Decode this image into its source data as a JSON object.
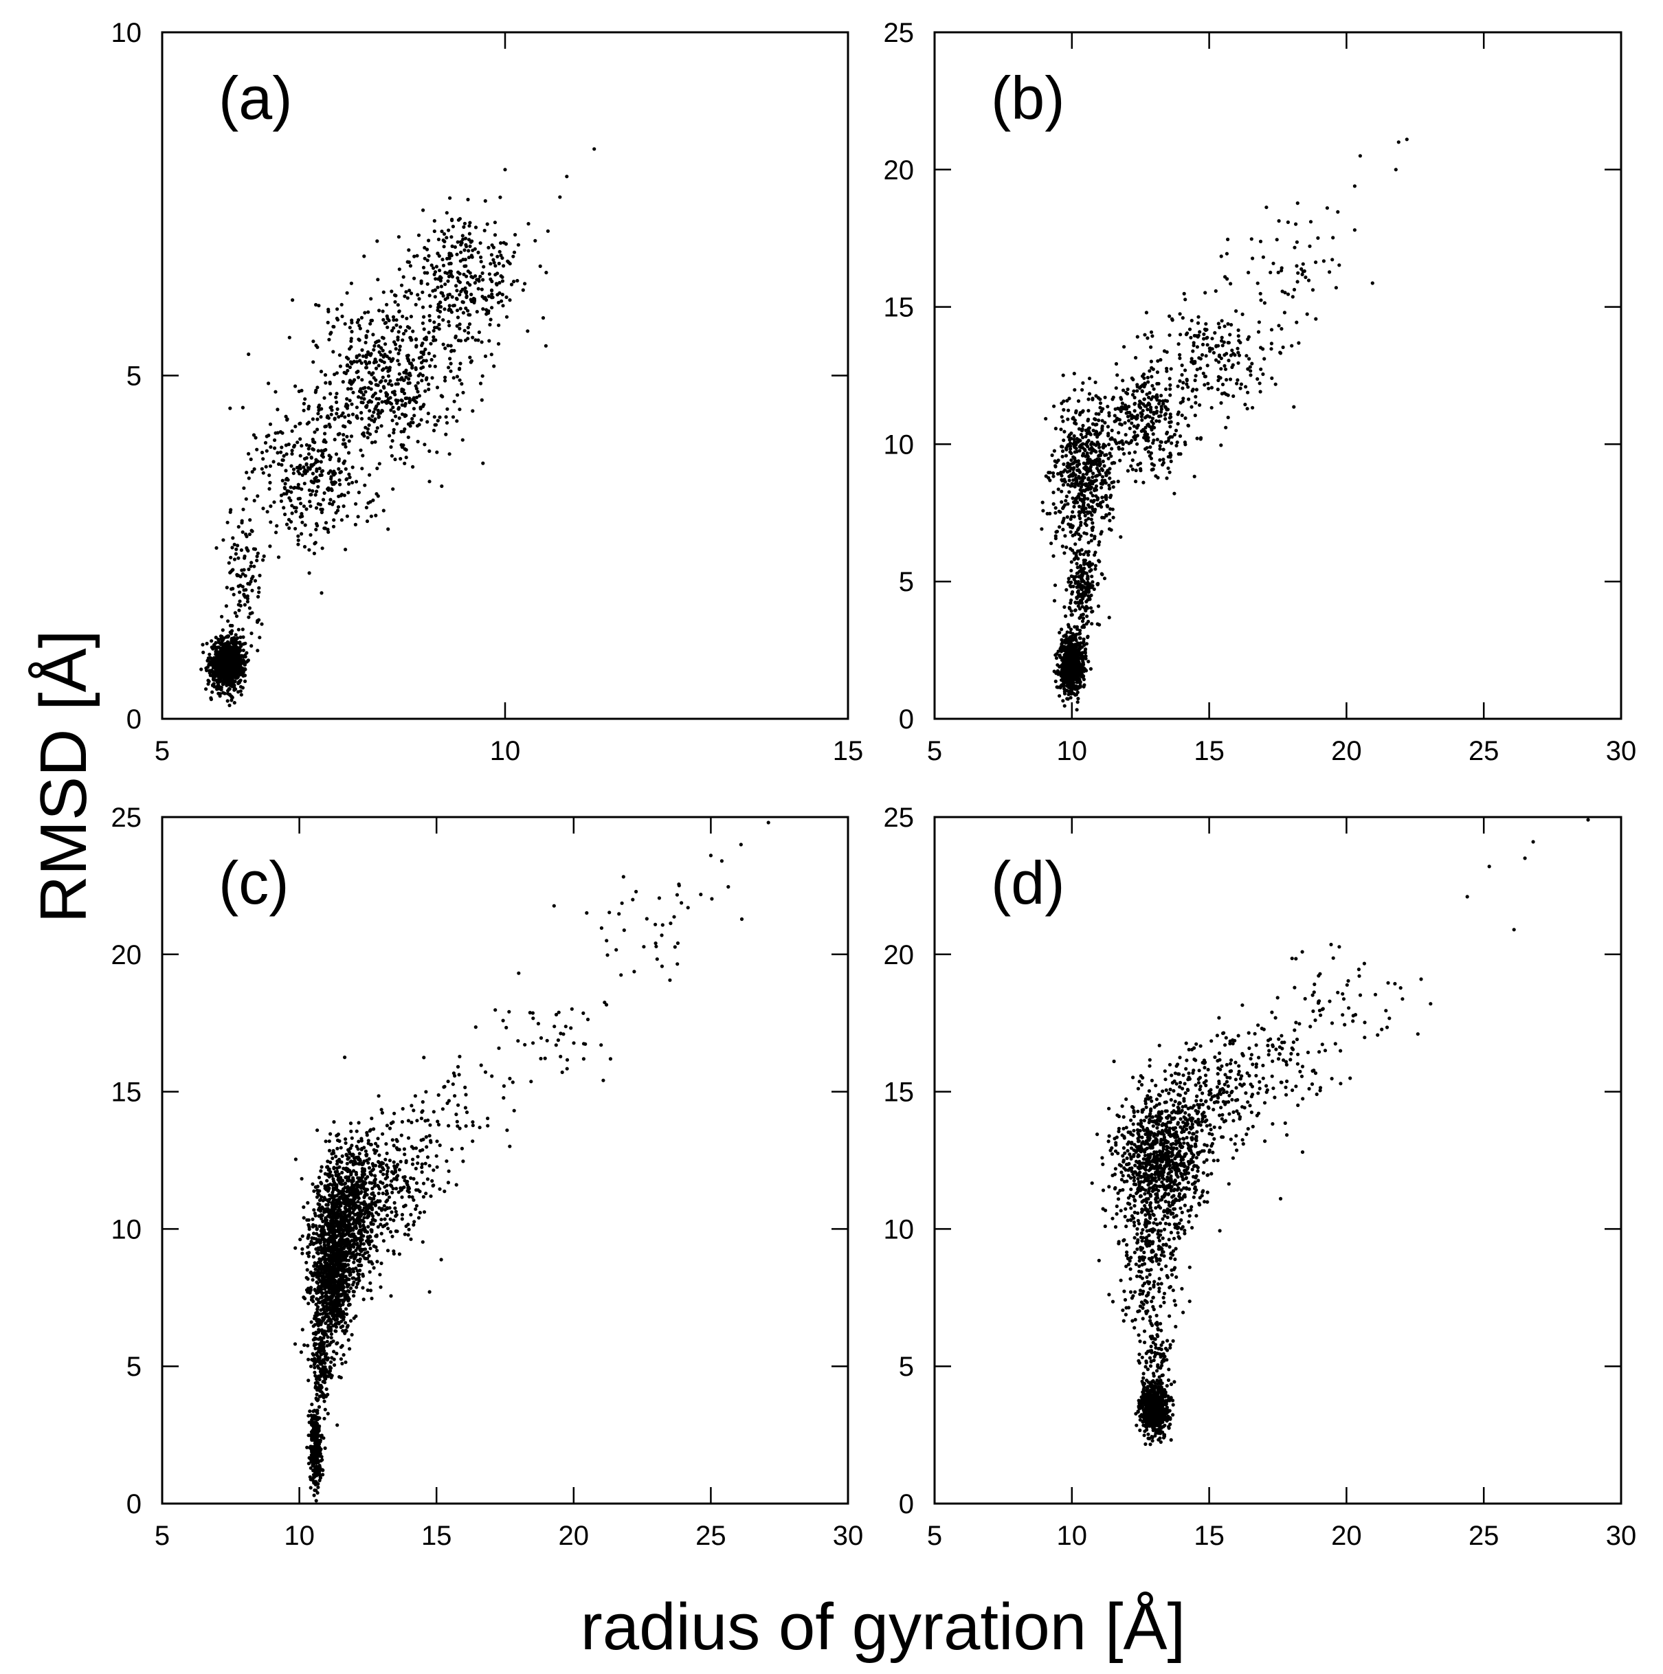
{
  "figure": {
    "xlabel": "radius of gyration [Å]",
    "ylabel": "RMSD [Å]",
    "point_color": "#000000"
  },
  "chart_data": [
    {
      "type": "scatter",
      "panel_label": "(a)",
      "xlim": [
        5,
        15
      ],
      "ylim": [
        0,
        10
      ],
      "xticks": [
        5,
        10,
        15
      ],
      "yticks": [
        0,
        5,
        10
      ],
      "xtick_labels": [
        "5",
        "10",
        "15"
      ],
      "ytick_labels": [
        "0",
        "5",
        "10"
      ],
      "grid": false,
      "clusters": [
        {
          "x_mean": 5.95,
          "x_sd": 0.12,
          "y_mean": 0.8,
          "y_sd": 0.18,
          "n": 900
        },
        {
          "x_mean": 6.2,
          "x_sd": 0.15,
          "y_mean": 2.0,
          "y_sd": 0.55,
          "n": 120
        },
        {
          "x_mean": 7.2,
          "x_sd": 0.45,
          "y_mean": 3.6,
          "y_sd": 0.55,
          "n": 350
        },
        {
          "x_mean": 8.3,
          "x_sd": 0.55,
          "y_mean": 5.0,
          "y_sd": 0.6,
          "n": 550
        },
        {
          "x_mean": 9.4,
          "x_sd": 0.4,
          "y_mean": 6.4,
          "y_sd": 0.5,
          "n": 320
        }
      ],
      "extreme_points": [
        {
          "x": 11.3,
          "y": 8.3
        },
        {
          "x": 10.9,
          "y": 7.9
        },
        {
          "x": 10.0,
          "y": 8.0
        },
        {
          "x": 10.8,
          "y": 7.6
        },
        {
          "x": 6.9,
          "y": 6.1
        },
        {
          "x": 10.6,
          "y": 6.5
        }
      ]
    },
    {
      "type": "scatter",
      "panel_label": "(b)",
      "xlim": [
        5,
        30
      ],
      "ylim": [
        0,
        25
      ],
      "xticks": [
        5,
        10,
        15,
        20,
        25,
        30
      ],
      "yticks": [
        0,
        5,
        10,
        15,
        20,
        25
      ],
      "xtick_labels": [
        "5",
        "10",
        "15",
        "20",
        "25",
        "30"
      ],
      "ytick_labels": [
        "0",
        "5",
        "10",
        "15",
        "20",
        "25"
      ],
      "grid": false,
      "clusters": [
        {
          "x_mean": 10.0,
          "x_sd": 0.22,
          "y_mean": 2.0,
          "y_sd": 0.55,
          "n": 650
        },
        {
          "x_mean": 10.4,
          "x_sd": 0.3,
          "y_mean": 4.8,
          "y_sd": 0.8,
          "n": 200
        },
        {
          "x_mean": 10.4,
          "x_sd": 0.55,
          "y_mean": 8.8,
          "y_sd": 1.3,
          "n": 500
        },
        {
          "x_mean": 12.5,
          "x_sd": 1.0,
          "y_mean": 10.8,
          "y_sd": 0.9,
          "n": 350
        },
        {
          "x_mean": 15.0,
          "x_sd": 1.2,
          "y_mean": 13.3,
          "y_sd": 1.0,
          "n": 200
        },
        {
          "x_mean": 18.0,
          "x_sd": 1.3,
          "y_mean": 16.5,
          "y_sd": 1.1,
          "n": 60
        }
      ],
      "extreme_points": [
        {
          "x": 22.2,
          "y": 21.1
        },
        {
          "x": 21.9,
          "y": 21.0
        },
        {
          "x": 20.5,
          "y": 20.5
        },
        {
          "x": 21.8,
          "y": 20.0
        },
        {
          "x": 20.3,
          "y": 19.4
        },
        {
          "x": 19.3,
          "y": 18.6
        },
        {
          "x": 20.3,
          "y": 17.8
        },
        {
          "x": 13.6,
          "y": 9.6
        }
      ]
    },
    {
      "type": "scatter",
      "panel_label": "(c)",
      "xlim": [
        5,
        30
      ],
      "ylim": [
        0,
        25
      ],
      "xticks": [
        5,
        10,
        15,
        20,
        25,
        30
      ],
      "yticks": [
        0,
        5,
        10,
        15,
        20,
        25
      ],
      "xtick_labels": [
        "5",
        "10",
        "15",
        "20",
        "25",
        "30"
      ],
      "ytick_labels": [
        "0",
        "5",
        "10",
        "15",
        "20",
        "25"
      ],
      "grid": false,
      "clusters": [
        {
          "x_mean": 10.6,
          "x_sd": 0.12,
          "y_mean": 2.0,
          "y_sd": 0.8,
          "n": 260
        },
        {
          "x_mean": 10.8,
          "x_sd": 0.18,
          "y_mean": 5.0,
          "y_sd": 0.9,
          "n": 180
        },
        {
          "x_mean": 11.2,
          "x_sd": 0.4,
          "y_mean": 8.5,
          "y_sd": 1.4,
          "n": 1000
        },
        {
          "x_mean": 11.8,
          "x_sd": 0.6,
          "y_mean": 10.5,
          "y_sd": 1.3,
          "n": 700
        },
        {
          "x_mean": 13.0,
          "x_sd": 1.0,
          "y_mean": 11.8,
          "y_sd": 1.1,
          "n": 300
        },
        {
          "x_mean": 15.5,
          "x_sd": 1.0,
          "y_mean": 13.9,
          "y_sd": 0.9,
          "n": 70
        },
        {
          "x_mean": 19.0,
          "x_sd": 1.5,
          "y_mean": 17.0,
          "y_sd": 1.2,
          "n": 50
        },
        {
          "x_mean": 23.0,
          "x_sd": 1.2,
          "y_mean": 21.0,
          "y_sd": 1.0,
          "n": 40
        }
      ],
      "extreme_points": [
        {
          "x": 27.1,
          "y": 24.8
        },
        {
          "x": 26.1,
          "y": 24.0
        },
        {
          "x": 25.4,
          "y": 23.4
        },
        {
          "x": 25.0,
          "y": 23.6
        },
        {
          "x": 21.0,
          "y": 16.7
        }
      ]
    },
    {
      "type": "scatter",
      "panel_label": "(d)",
      "xlim": [
        5,
        30
      ],
      "ylim": [
        0,
        25
      ],
      "xticks": [
        5,
        10,
        15,
        20,
        25,
        30
      ],
      "yticks": [
        0,
        5,
        10,
        15,
        20,
        25
      ],
      "xtick_labels": [
        "5",
        "10",
        "15",
        "20",
        "25",
        "30"
      ],
      "ytick_labels": [
        "0",
        "5",
        "10",
        "15",
        "20",
        "25"
      ],
      "grid": false,
      "clusters": [
        {
          "x_mean": 13.0,
          "x_sd": 0.25,
          "y_mean": 3.5,
          "y_sd": 0.5,
          "n": 600
        },
        {
          "x_mean": 13.0,
          "x_sd": 0.3,
          "y_mean": 5.6,
          "y_sd": 0.7,
          "n": 80
        },
        {
          "x_mean": 12.9,
          "x_sd": 0.6,
          "y_mean": 9.0,
          "y_sd": 1.3,
          "n": 250
        },
        {
          "x_mean": 13.2,
          "x_sd": 0.8,
          "y_mean": 12.5,
          "y_sd": 1.2,
          "n": 900
        },
        {
          "x_mean": 15.0,
          "x_sd": 1.0,
          "y_mean": 14.8,
          "y_sd": 1.0,
          "n": 250
        },
        {
          "x_mean": 17.5,
          "x_sd": 1.3,
          "y_mean": 16.2,
          "y_sd": 1.0,
          "n": 100
        },
        {
          "x_mean": 20.0,
          "x_sd": 1.2,
          "y_mean": 18.5,
          "y_sd": 1.0,
          "n": 50
        }
      ],
      "extreme_points": [
        {
          "x": 28.8,
          "y": 24.9
        },
        {
          "x": 26.8,
          "y": 24.1
        },
        {
          "x": 26.5,
          "y": 23.5
        },
        {
          "x": 25.2,
          "y": 23.2
        },
        {
          "x": 26.1,
          "y": 20.9
        },
        {
          "x": 24.4,
          "y": 22.1
        },
        {
          "x": 22.6,
          "y": 17.1
        },
        {
          "x": 17.6,
          "y": 11.1
        },
        {
          "x": 18.4,
          "y": 12.8
        }
      ]
    }
  ]
}
